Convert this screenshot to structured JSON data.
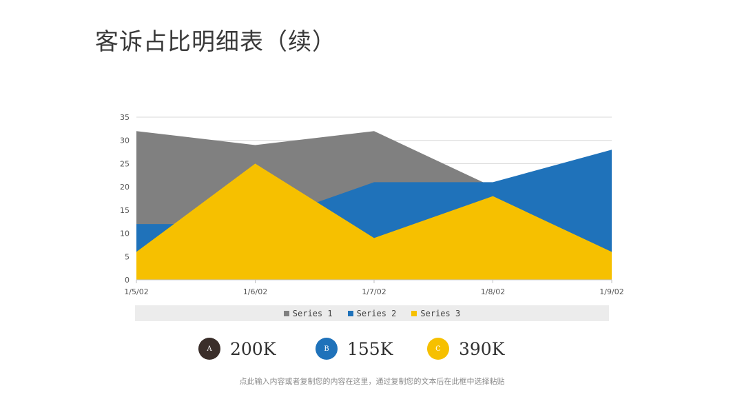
{
  "header": {
    "title": "客诉占比明细表（续）",
    "accent_colors": [
      "#f6bd1d",
      "#1f72ba"
    ]
  },
  "chart_data": {
    "type": "area",
    "categories": [
      "1/5/02",
      "1/6/02",
      "1/7/02",
      "1/8/02",
      "1/9/02"
    ],
    "series": [
      {
        "name": "Series 1",
        "values": [
          32,
          29,
          32,
          20,
          6
        ],
        "color": "#808080"
      },
      {
        "name": "Series 2",
        "values": [
          12,
          12,
          21,
          21,
          28
        ],
        "color": "#1f72ba"
      },
      {
        "name": "Series 3",
        "values": [
          6,
          25,
          9,
          18,
          6
        ],
        "color": "#f6c000"
      }
    ],
    "ylim": [
      0,
      35
    ],
    "yticks": [
      "0",
      "5",
      "10",
      "15",
      "20",
      "25",
      "30",
      "35"
    ],
    "grid": true,
    "legend_position": "bottom"
  },
  "stats": [
    {
      "badge": "A",
      "value": "200K",
      "color": "#3a2e2a"
    },
    {
      "badge": "B",
      "value": "155K",
      "color": "#1f72ba"
    },
    {
      "badge": "C",
      "value": "390K",
      "color": "#f6c000"
    }
  ],
  "footer": {
    "text": "点此输入内容或者复制您的内容在这里，通过复制您的文本后在此框中选择粘贴"
  }
}
